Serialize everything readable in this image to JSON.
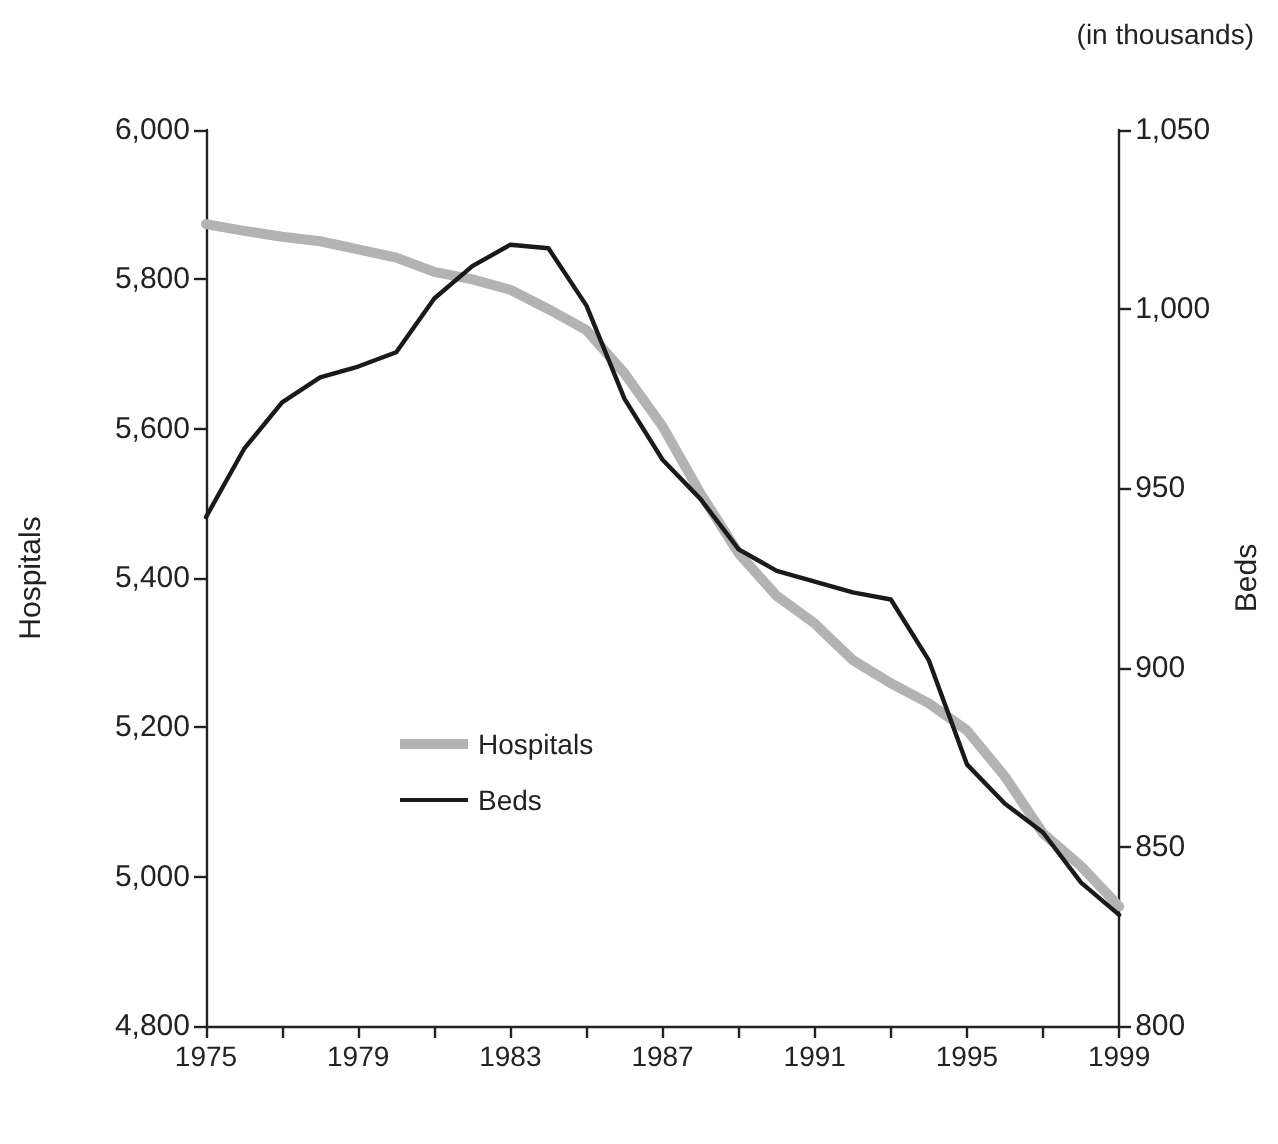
{
  "chart_data": {
    "type": "line",
    "xlabel": null,
    "ylabel": "Hospitals",
    "y2label": "Beds",
    "annotations": [
      "(in thousands)"
    ],
    "x": [
      1975,
      1976,
      1977,
      1978,
      1979,
      1980,
      1981,
      1982,
      1983,
      1984,
      1985,
      1986,
      1987,
      1988,
      1989,
      1990,
      1991,
      1992,
      1993,
      1994,
      1995,
      1996,
      1997,
      1998,
      1999
    ],
    "series": [
      {
        "name": "Hospitals",
        "color": "#b3b3b3",
        "values": [
          5874,
          5865,
          5857,
          5851,
          5840,
          5829,
          5810,
          5800,
          5786,
          5760,
          5732,
          5674,
          5603,
          5513,
          5433,
          5376,
          5339,
          5290,
          5259,
          5232,
          5196,
          5134,
          5058,
          5014,
          4960
        ]
      },
      {
        "name": "Beds",
        "color": "#1a1a1a",
        "axis": "y2",
        "values": [
          942,
          961,
          974,
          981,
          984,
          988,
          1003,
          1012,
          1018,
          1017,
          1001,
          975,
          958,
          947,
          933,
          927,
          924,
          921,
          919,
          902,
          873,
          862,
          854,
          840,
          831
        ]
      }
    ],
    "xlim": [
      1975,
      1999
    ],
    "xticks": [
      1975,
      {
        "value": 1977,
        "label": null
      },
      1979,
      {
        "value": 1981,
        "label": null
      },
      1983,
      {
        "value": 1985,
        "label": null
      },
      1987,
      {
        "value": 1989,
        "label": null
      },
      1991,
      {
        "value": 1993,
        "label": null
      },
      1995,
      {
        "value": 1997,
        "label": null
      },
      1999
    ],
    "ylim": [
      4800,
      6000
    ],
    "yticks": [
      {
        "value": 4800,
        "label": "4,800"
      },
      {
        "value": 5000,
        "label": "5,000"
      },
      {
        "value": 5200,
        "label": "5,200"
      },
      {
        "value": 5400,
        "label": "5,400"
      },
      {
        "value": 5600,
        "label": "5,600"
      },
      {
        "value": 5800,
        "label": "5,800"
      },
      {
        "value": 6000,
        "label": "6,000"
      }
    ],
    "y2lim": [
      800,
      1050
    ],
    "y2ticks": [
      800,
      850,
      900,
      950,
      {
        "value": 1000,
        "label": "1,000"
      },
      {
        "value": 1050,
        "label": "1,050"
      }
    ],
    "grid": false,
    "legend": "left",
    "marker": "none",
    "line_style": "solid"
  }
}
